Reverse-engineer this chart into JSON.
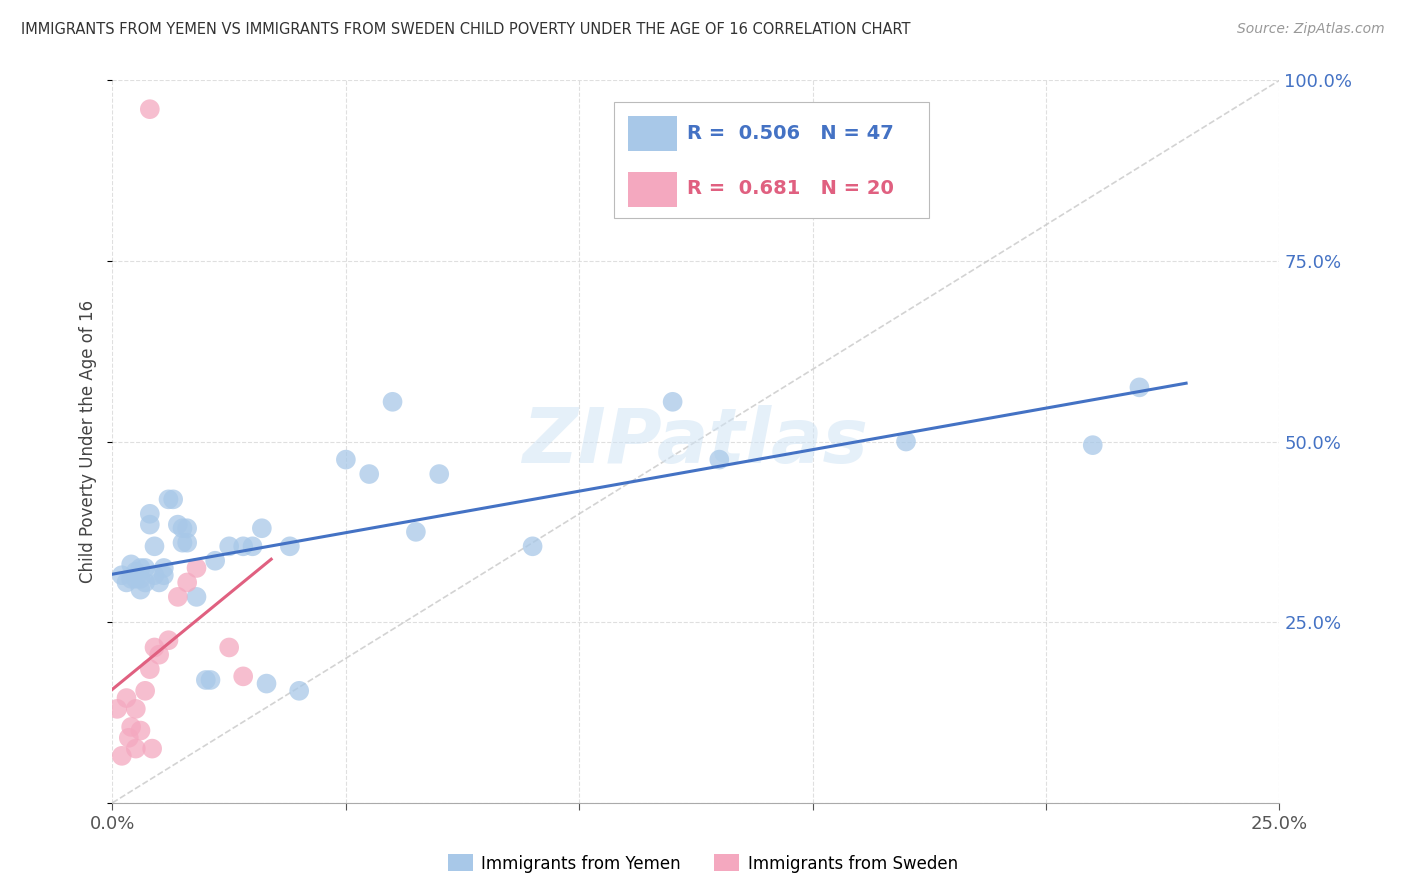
{
  "title": "IMMIGRANTS FROM YEMEN VS IMMIGRANTS FROM SWEDEN CHILD POVERTY UNDER THE AGE OF 16 CORRELATION CHART",
  "source": "Source: ZipAtlas.com",
  "ylabel": "Child Poverty Under the Age of 16",
  "xlim": [
    0.0,
    0.25
  ],
  "ylim": [
    0.0,
    1.0
  ],
  "legend_label1": "Immigrants from Yemen",
  "legend_label2": "Immigrants from Sweden",
  "R1": 0.506,
  "N1": 47,
  "R2": 0.681,
  "N2": 20,
  "color_blue": "#a8c8e8",
  "color_pink": "#f4a8bf",
  "color_line_blue": "#4472c4",
  "color_line_pink": "#e06080",
  "color_diag": "#c8c8c8",
  "color_right_axis": "#4472c4",
  "background_color": "#ffffff",
  "watermark": "ZIPatlas",
  "yemen_x": [
    0.002,
    0.003,
    0.004,
    0.004,
    0.005,
    0.005,
    0.006,
    0.006,
    0.006,
    0.007,
    0.007,
    0.008,
    0.008,
    0.009,
    0.009,
    0.01,
    0.011,
    0.011,
    0.012,
    0.013,
    0.014,
    0.015,
    0.015,
    0.016,
    0.016,
    0.018,
    0.02,
    0.021,
    0.022,
    0.025,
    0.028,
    0.03,
    0.032,
    0.033,
    0.038,
    0.04,
    0.05,
    0.055,
    0.06,
    0.065,
    0.07,
    0.09,
    0.12,
    0.13,
    0.17,
    0.21,
    0.22
  ],
  "yemen_y": [
    0.315,
    0.305,
    0.31,
    0.33,
    0.31,
    0.32,
    0.295,
    0.31,
    0.325,
    0.305,
    0.325,
    0.4,
    0.385,
    0.315,
    0.355,
    0.305,
    0.315,
    0.325,
    0.42,
    0.42,
    0.385,
    0.36,
    0.38,
    0.36,
    0.38,
    0.285,
    0.17,
    0.17,
    0.335,
    0.355,
    0.355,
    0.355,
    0.38,
    0.165,
    0.355,
    0.155,
    0.475,
    0.455,
    0.555,
    0.375,
    0.455,
    0.355,
    0.555,
    0.475,
    0.5,
    0.495,
    0.575
  ],
  "sweden_x": [
    0.001,
    0.002,
    0.003,
    0.0035,
    0.004,
    0.005,
    0.005,
    0.006,
    0.007,
    0.008,
    0.0085,
    0.009,
    0.01,
    0.012,
    0.014,
    0.016,
    0.018,
    0.025,
    0.028,
    0.008
  ],
  "sweden_y": [
    0.13,
    0.065,
    0.145,
    0.09,
    0.105,
    0.13,
    0.075,
    0.1,
    0.155,
    0.185,
    0.075,
    0.215,
    0.205,
    0.225,
    0.285,
    0.305,
    0.325,
    0.215,
    0.175,
    0.96
  ]
}
